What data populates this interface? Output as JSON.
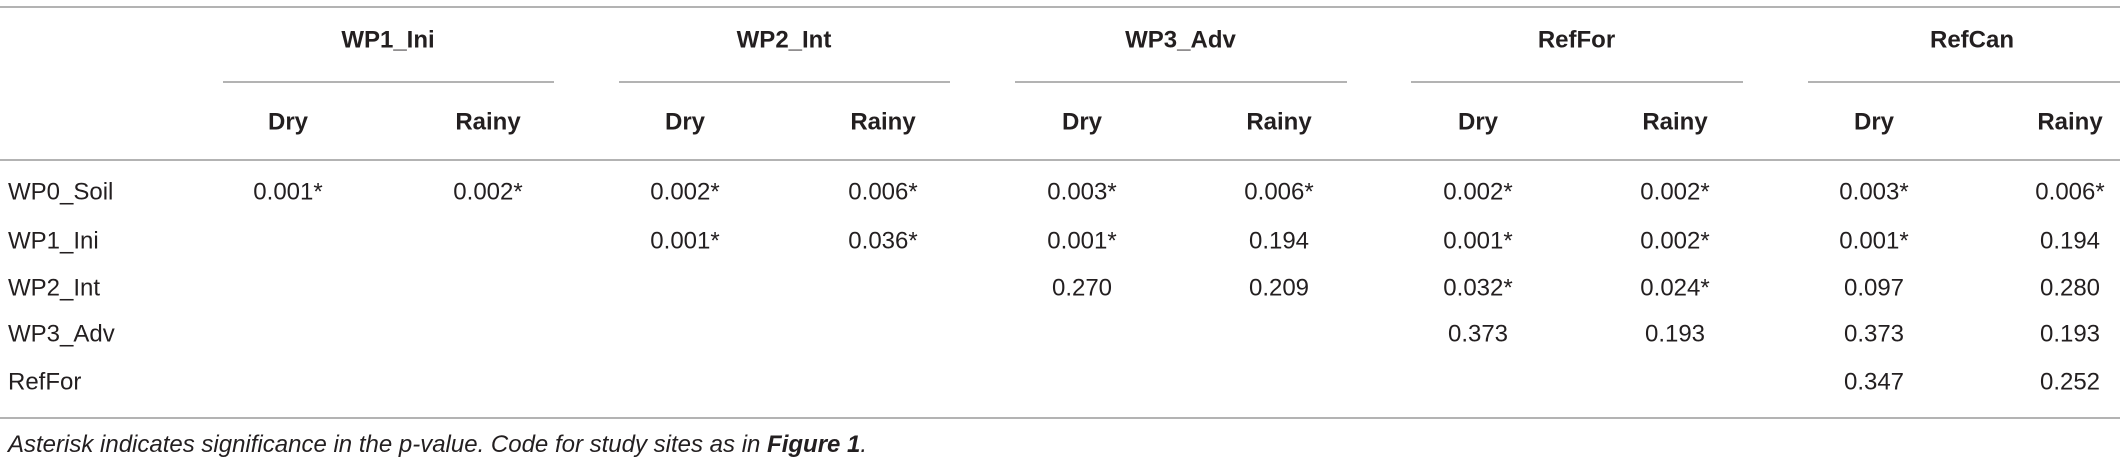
{
  "table": {
    "groups": [
      "WP1_Ini",
      "WP2_Int",
      "WP3_Adv",
      "RefFor",
      "RefCan"
    ],
    "subheaders": [
      "Dry",
      "Rainy",
      "Dry",
      "Rainy",
      "Dry",
      "Rainy",
      "Dry",
      "Rainy",
      "Dry",
      "Rainy"
    ],
    "rows": [
      {
        "label": "WP0_Soil",
        "cells": [
          "0.001*",
          "0.002*",
          "0.002*",
          "0.006*",
          "0.003*",
          "0.006*",
          "0.002*",
          "0.002*",
          "0.003*",
          "0.006*"
        ]
      },
      {
        "label": "WP1_Ini",
        "cells": [
          "0.001*",
          "0.036*",
          "0.001*",
          "0.194",
          "0.001*",
          "0.002*",
          "0.001*",
          "0.194"
        ]
      },
      {
        "label": "WP2_Int",
        "cells": [
          "0.270",
          "0.209",
          "0.032*",
          "0.024*",
          "0.097",
          "0.280"
        ]
      },
      {
        "label": "WP3_Adv",
        "cells": [
          "0.373",
          "0.193",
          "0.373",
          "0.193"
        ]
      },
      {
        "label": "RefFor",
        "cells": [
          "0.347",
          "0.252"
        ]
      }
    ]
  },
  "footnote": [
    "Asterisk indicates significance in the p-value. Code for study sites as in ",
    "Figure 1",
    "."
  ]
}
